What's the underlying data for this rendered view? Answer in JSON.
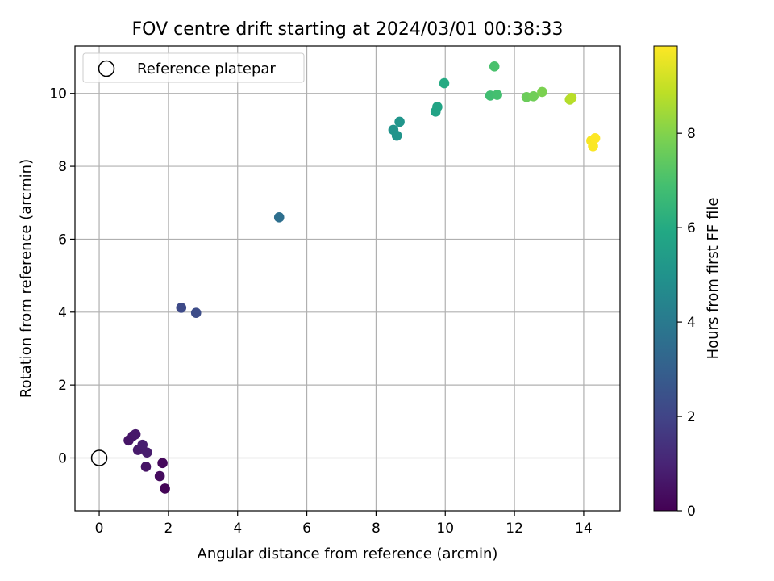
{
  "chart_data": {
    "type": "scatter",
    "title": "FOV centre drift starting at 2024/03/01 00:38:33",
    "xlabel": "Angular distance from reference (arcmin)",
    "ylabel": "Rotation from reference (arcmin)",
    "xlim": [
      -0.7,
      15.05
    ],
    "ylim": [
      -1.45,
      11.3
    ],
    "xticks": [
      0,
      2,
      4,
      6,
      8,
      10,
      12,
      14
    ],
    "yticks": [
      0,
      2,
      4,
      6,
      8,
      10
    ],
    "grid": true,
    "legend": {
      "placement": "top-left",
      "entries": [
        "Reference platepar"
      ]
    },
    "reference_point": {
      "name": "Reference platepar",
      "x": 0,
      "y": 0
    },
    "colorbar": {
      "label": "Hours from first FF file",
      "range": [
        0,
        9.85
      ],
      "ticks": [
        0,
        2,
        4,
        6,
        8
      ],
      "colormap": "viridis"
    },
    "points": [
      {
        "x": 0.85,
        "y": 0.48,
        "h": 0.55
      },
      {
        "x": 0.97,
        "y": 0.6,
        "h": 0.6
      },
      {
        "x": 1.05,
        "y": 0.65,
        "h": 0.65
      },
      {
        "x": 1.12,
        "y": 0.22,
        "h": 0.7
      },
      {
        "x": 1.25,
        "y": 0.36,
        "h": 0.8
      },
      {
        "x": 1.38,
        "y": 0.15,
        "h": 0.75
      },
      {
        "x": 1.35,
        "y": -0.24,
        "h": 0.5
      },
      {
        "x": 1.75,
        "y": -0.5,
        "h": 0.3
      },
      {
        "x": 1.83,
        "y": -0.14,
        "h": 0.2
      },
      {
        "x": 1.9,
        "y": -0.84,
        "h": 0.1
      },
      {
        "x": 2.37,
        "y": 4.12,
        "h": 2.2
      },
      {
        "x": 2.8,
        "y": 3.98,
        "h": 2.3
      },
      {
        "x": 5.2,
        "y": 6.6,
        "h": 3.6
      },
      {
        "x": 8.5,
        "y": 9.0,
        "h": 5.0
      },
      {
        "x": 8.6,
        "y": 8.84,
        "h": 5.05
      },
      {
        "x": 8.68,
        "y": 9.22,
        "h": 5.1
      },
      {
        "x": 9.72,
        "y": 9.5,
        "h": 5.7
      },
      {
        "x": 9.77,
        "y": 9.63,
        "h": 5.75
      },
      {
        "x": 9.97,
        "y": 10.28,
        "h": 6.0
      },
      {
        "x": 11.3,
        "y": 9.94,
        "h": 6.8
      },
      {
        "x": 11.5,
        "y": 9.96,
        "h": 6.9
      },
      {
        "x": 11.42,
        "y": 10.74,
        "h": 7.0
      },
      {
        "x": 12.35,
        "y": 9.9,
        "h": 7.6
      },
      {
        "x": 12.55,
        "y": 9.92,
        "h": 7.7
      },
      {
        "x": 12.8,
        "y": 10.04,
        "h": 7.9
      },
      {
        "x": 13.6,
        "y": 9.83,
        "h": 8.7
      },
      {
        "x": 13.65,
        "y": 9.88,
        "h": 8.8
      },
      {
        "x": 14.22,
        "y": 8.7,
        "h": 9.75
      },
      {
        "x": 14.27,
        "y": 8.55,
        "h": 9.8
      },
      {
        "x": 14.33,
        "y": 8.77,
        "h": 9.85
      }
    ]
  },
  "colors": {
    "grid": "#b0b0b0",
    "axis": "#000000",
    "reference_marker": "#000000"
  }
}
